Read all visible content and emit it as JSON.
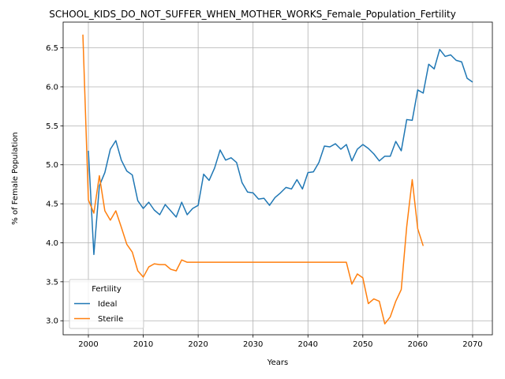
{
  "chart_data": {
    "type": "line",
    "title": "SCHOOL_KIDS_DO_NOT_SUFFER_WHEN_MOTHER_WORKS_Female_Population_Fertility",
    "xlabel": "Years",
    "ylabel": "% of Female Population",
    "xlim": [
      1995.4,
      2073.6
    ],
    "ylim": [
      2.82,
      6.83
    ],
    "xticks": [
      2000,
      2010,
      2020,
      2030,
      2040,
      2050,
      2060,
      2070
    ],
    "yticks": [
      3.0,
      3.5,
      4.0,
      4.5,
      5.0,
      5.5,
      6.0,
      6.5
    ],
    "grid": true,
    "legend": {
      "title": "Fertility",
      "position": "lower-left"
    },
    "series": [
      {
        "name": "Ideal",
        "color": "#1f77b4",
        "x": [
          2000,
          2001,
          2002,
          2003,
          2004,
          2005,
          2006,
          2007,
          2008,
          2009,
          2010,
          2011,
          2012,
          2013,
          2014,
          2015,
          2016,
          2017,
          2018,
          2019,
          2020,
          2021,
          2022,
          2023,
          2024,
          2025,
          2026,
          2027,
          2028,
          2029,
          2030,
          2031,
          2032,
          2033,
          2034,
          2035,
          2036,
          2037,
          2038,
          2039,
          2040,
          2041,
          2042,
          2043,
          2044,
          2045,
          2046,
          2047,
          2048,
          2049,
          2050,
          2051,
          2052,
          2053,
          2054,
          2055,
          2056,
          2057,
          2058,
          2059,
          2060,
          2061,
          2062,
          2063,
          2064,
          2065,
          2066,
          2067,
          2068,
          2069,
          2070
        ],
        "y": [
          5.18,
          3.85,
          4.73,
          4.9,
          5.2,
          5.31,
          5.06,
          4.92,
          4.87,
          4.54,
          4.44,
          4.52,
          4.42,
          4.36,
          4.49,
          4.41,
          4.33,
          4.52,
          4.36,
          4.44,
          4.48,
          4.88,
          4.8,
          4.96,
          5.19,
          5.06,
          5.09,
          5.03,
          4.77,
          4.65,
          4.64,
          4.56,
          4.57,
          4.48,
          4.58,
          4.64,
          4.71,
          4.69,
          4.81,
          4.69,
          4.9,
          4.91,
          5.03,
          5.24,
          5.23,
          5.27,
          5.2,
          5.26,
          5.05,
          5.2,
          5.26,
          5.21,
          5.14,
          5.05,
          5.11,
          5.11,
          5.3,
          5.18,
          5.58,
          5.57,
          5.96,
          5.92,
          6.29,
          6.23,
          6.48,
          6.39,
          6.41,
          6.34,
          6.32,
          6.11,
          6.06
        ]
      },
      {
        "name": "Sterile",
        "color": "#ff7f0e",
        "x": [
          1999,
          2000,
          2001,
          2002,
          2003,
          2004,
          2005,
          2006,
          2007,
          2008,
          2009,
          2010,
          2011,
          2012,
          2013,
          2014,
          2015,
          2016,
          2017,
          2018,
          2019,
          2020,
          2021,
          2022,
          2023,
          2024,
          2025,
          2026,
          2027,
          2028,
          2029,
          2030,
          2031,
          2032,
          2033,
          2034,
          2035,
          2036,
          2037,
          2038,
          2039,
          2040,
          2041,
          2042,
          2043,
          2044,
          2045,
          2046,
          2047,
          2048,
          2049,
          2050,
          2051,
          2052,
          2053,
          2054,
          2055,
          2056,
          2057,
          2058,
          2059,
          2060,
          2061
        ],
        "y": [
          6.67,
          4.55,
          4.38,
          4.86,
          4.41,
          4.29,
          4.41,
          4.2,
          3.98,
          3.88,
          3.64,
          3.56,
          3.69,
          3.73,
          3.72,
          3.72,
          3.66,
          3.64,
          3.78,
          3.75,
          3.75,
          3.75,
          3.75,
          3.75,
          3.75,
          3.75,
          3.75,
          3.75,
          3.75,
          3.75,
          3.75,
          3.75,
          3.75,
          3.75,
          3.75,
          3.75,
          3.75,
          3.75,
          3.75,
          3.75,
          3.75,
          3.75,
          3.75,
          3.75,
          3.75,
          3.75,
          3.75,
          3.75,
          3.75,
          3.47,
          3.6,
          3.55,
          3.22,
          3.28,
          3.25,
          2.96,
          3.05,
          3.25,
          3.4,
          4.21,
          4.81,
          4.18,
          3.96
        ]
      }
    ]
  }
}
